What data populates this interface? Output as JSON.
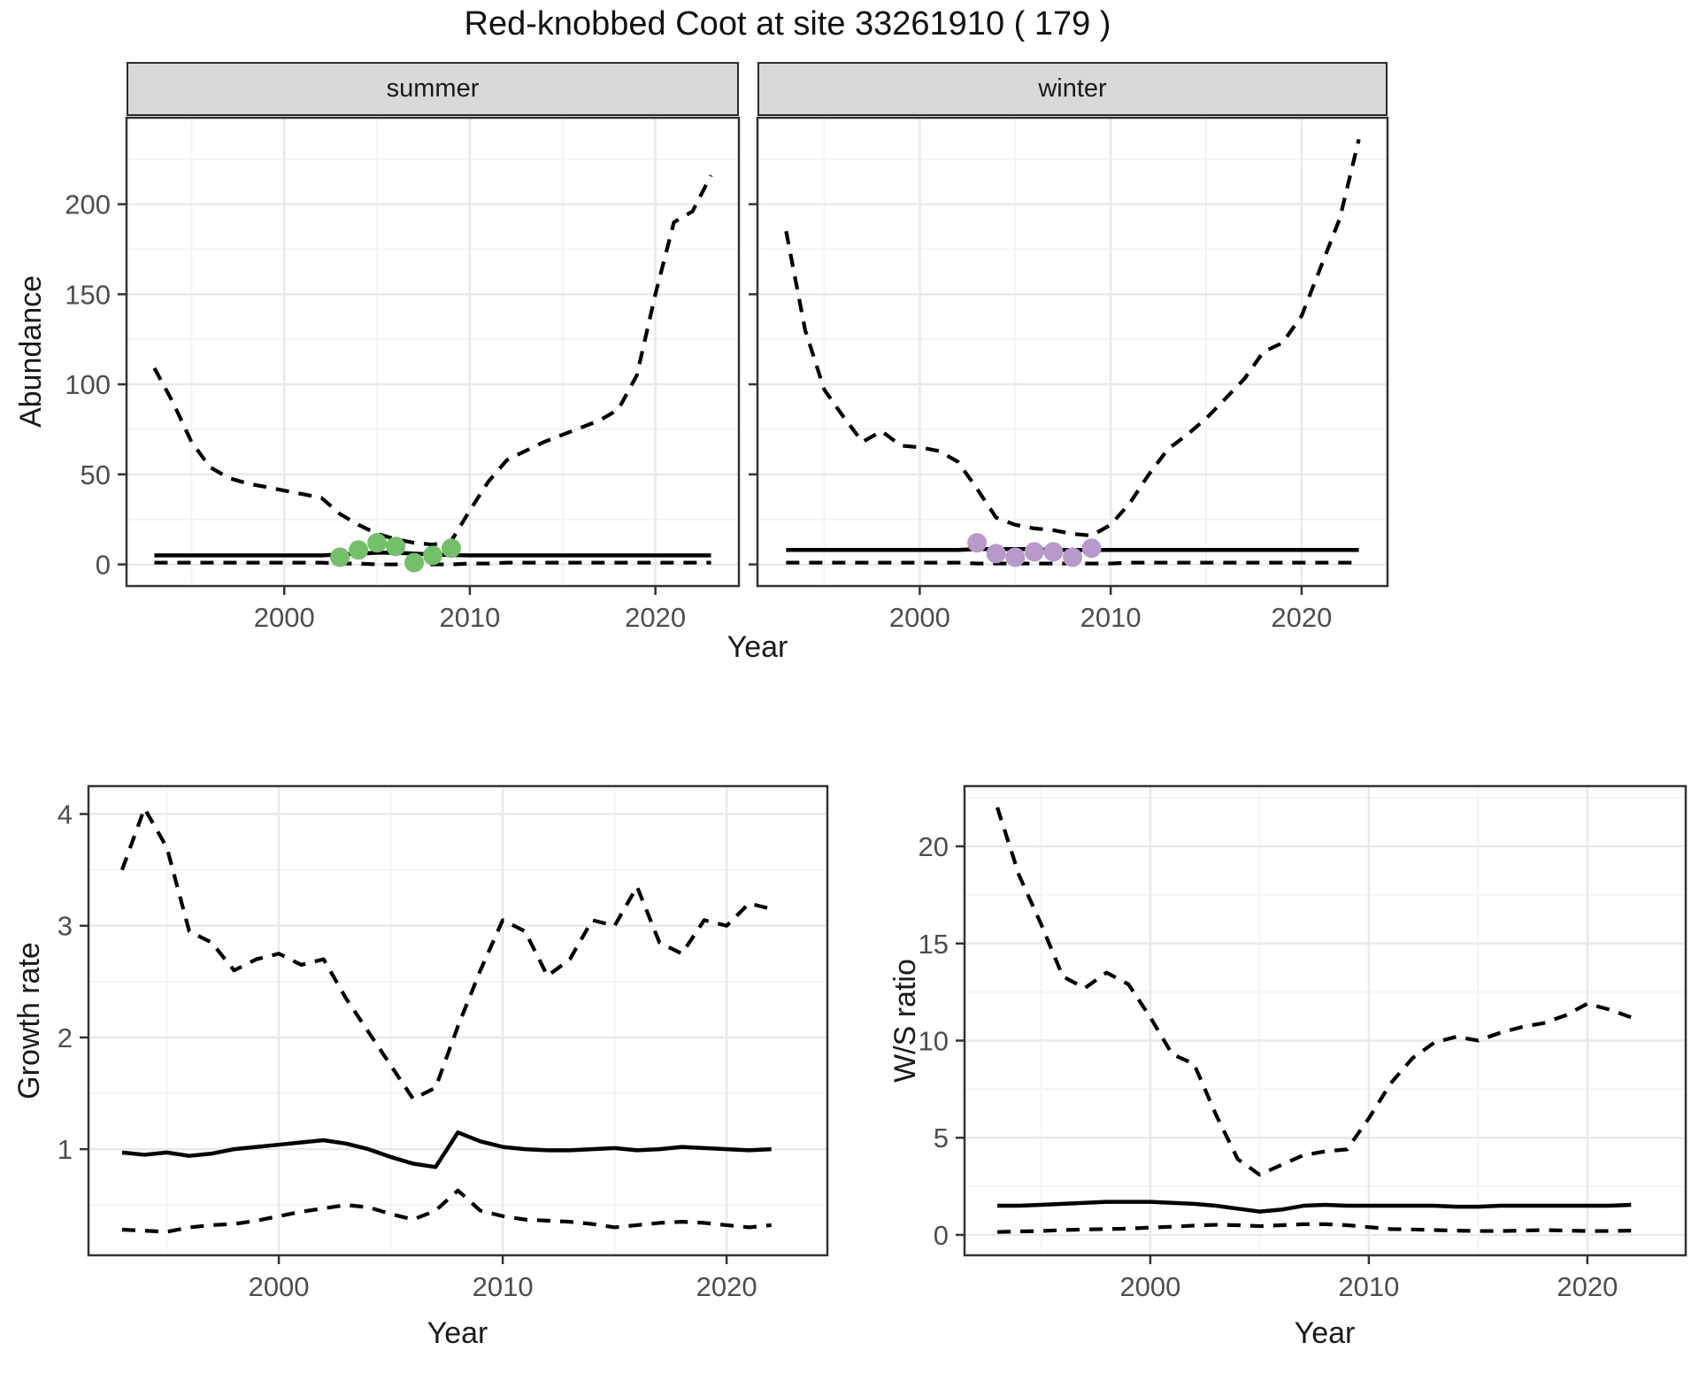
{
  "title": "Red-knobbed Coot at site 33261910 ( 179 )",
  "colors": {
    "summer_point": "#74bf69",
    "winter_point": "#b79ac9",
    "line": "#000000",
    "strip_bg": "#d9d9d9",
    "grid_major": "#e9e9e9",
    "grid_minor": "#f4f4f4",
    "axis_text": "#4d4d4d",
    "panel_border": "#333333",
    "background": "#ffffff"
  },
  "chart_data": [
    {
      "id": "abundance_summer",
      "type": "line",
      "facet_label": "summer",
      "ylabel": "Abundance",
      "xlabel": "Year",
      "x_ticks": [
        2000,
        2010,
        2020
      ],
      "y_ticks": [
        0,
        50,
        100,
        150,
        200
      ],
      "xlim": [
        1991.5,
        2024.5
      ],
      "ylim": [
        -12,
        248
      ],
      "grid": true,
      "legend": "none",
      "x": [
        1993,
        1994,
        1995,
        1996,
        1997,
        1998,
        1999,
        2000,
        2001,
        2002,
        2003,
        2004,
        2005,
        2006,
        2007,
        2008,
        2009,
        2010,
        2011,
        2012,
        2013,
        2014,
        2015,
        2016,
        2017,
        2018,
        2019,
        2020,
        2021,
        2022,
        2023
      ],
      "series": [
        {
          "name": "upper_95ci",
          "style": "dashed",
          "values": [
            109,
            90,
            68,
            54,
            48,
            45,
            43,
            41,
            39,
            37,
            28,
            22,
            17,
            14,
            12,
            11,
            13,
            30,
            46,
            58,
            63,
            68,
            72,
            76,
            80,
            86,
            105,
            150,
            190,
            196,
            216
          ]
        },
        {
          "name": "median",
          "style": "solid",
          "values": [
            5,
            5,
            5,
            5,
            5,
            5,
            5,
            5,
            5,
            5,
            5.5,
            6,
            6.5,
            6.5,
            6,
            5.5,
            5.2,
            5,
            5,
            5,
            5,
            5,
            5,
            5,
            5,
            5,
            5,
            5,
            5,
            5,
            5
          ]
        },
        {
          "name": "lower_95ci",
          "style": "dashed",
          "values": [
            1,
            1,
            1,
            1,
            1,
            1,
            1,
            1,
            1,
            1,
            0.5,
            0.5,
            0,
            0,
            0,
            0,
            0,
            0.5,
            0.5,
            1,
            1,
            1,
            1,
            1,
            1,
            1,
            1,
            1,
            1,
            1,
            1
          ]
        }
      ],
      "points": {
        "name": "observed_counts_summer",
        "color_key": "summer_point",
        "x": [
          2003,
          2004,
          2005,
          2006,
          2007,
          2008,
          2009
        ],
        "y": [
          4,
          8,
          12,
          10,
          1,
          5,
          9
        ]
      }
    },
    {
      "id": "abundance_winter",
      "type": "line",
      "facet_label": "winter",
      "ylabel": "Abundance",
      "xlabel": "Year",
      "x_ticks": [
        2000,
        2010,
        2020
      ],
      "y_ticks": [
        0,
        50,
        100,
        150,
        200
      ],
      "xlim": [
        1991.5,
        2024.5
      ],
      "ylim": [
        -12,
        248
      ],
      "grid": true,
      "legend": "none",
      "x": [
        1993,
        1994,
        1995,
        1996,
        1997,
        1998,
        1999,
        2000,
        2001,
        2002,
        2003,
        2004,
        2005,
        2006,
        2007,
        2008,
        2009,
        2010,
        2011,
        2012,
        2013,
        2014,
        2015,
        2016,
        2017,
        2018,
        2019,
        2020,
        2021,
        2022,
        2023
      ],
      "series": [
        {
          "name": "upper_95ci",
          "style": "dashed",
          "values": [
            185,
            130,
            97,
            82,
            68,
            74,
            66,
            65,
            63,
            57,
            42,
            26,
            22,
            20,
            19,
            17,
            16,
            22,
            34,
            50,
            64,
            72,
            81,
            92,
            103,
            118,
            123,
            138,
            165,
            192,
            236
          ]
        },
        {
          "name": "median",
          "style": "solid",
          "values": [
            8,
            8,
            8,
            8,
            8,
            8,
            8,
            8,
            8,
            8,
            8.5,
            8.5,
            8.5,
            8.5,
            8,
            8,
            8,
            8,
            8,
            8,
            8,
            8,
            8,
            8,
            8,
            8,
            8,
            8,
            8,
            8,
            8
          ]
        },
        {
          "name": "lower_95ci",
          "style": "dashed",
          "values": [
            1,
            1,
            1,
            1,
            1,
            1,
            1,
            1,
            1,
            1,
            0.5,
            0.5,
            0.5,
            0.5,
            0.5,
            0.5,
            0.5,
            0.5,
            1,
            1,
            1,
            1,
            1,
            1,
            1,
            1,
            1,
            1,
            1,
            1,
            1
          ]
        }
      ],
      "points": {
        "name": "observed_counts_winter",
        "color_key": "winter_point",
        "x": [
          2003,
          2004,
          2005,
          2006,
          2007,
          2008,
          2009
        ],
        "y": [
          12,
          6,
          4,
          7,
          7,
          4,
          9
        ]
      }
    },
    {
      "id": "growth_rate",
      "type": "line",
      "facet_label": "",
      "ylabel": "Growth rate",
      "xlabel": "Year",
      "x_ticks": [
        2000,
        2010,
        2020
      ],
      "y_ticks": [
        1,
        2,
        3,
        4
      ],
      "xlim": [
        1991.5,
        2024.5
      ],
      "ylim": [
        0.05,
        4.25
      ],
      "grid": true,
      "legend": "none",
      "x": [
        1993,
        1994,
        1995,
        1996,
        1997,
        1998,
        1999,
        2000,
        2001,
        2002,
        2003,
        2004,
        2005,
        2006,
        2007,
        2008,
        2009,
        2010,
        2011,
        2012,
        2013,
        2014,
        2015,
        2016,
        2017,
        2018,
        2019,
        2020,
        2021,
        2022
      ],
      "series": [
        {
          "name": "upper_95ci",
          "style": "dashed",
          "values": [
            3.5,
            4.05,
            3.7,
            2.95,
            2.85,
            2.6,
            2.7,
            2.75,
            2.65,
            2.7,
            2.35,
            2.05,
            1.75,
            1.45,
            1.55,
            2.1,
            2.6,
            3.05,
            2.95,
            2.55,
            2.7,
            3.05,
            3.0,
            3.35,
            2.85,
            2.75,
            3.05,
            3.0,
            3.2,
            3.15
          ]
        },
        {
          "name": "median",
          "style": "solid",
          "values": [
            0.97,
            0.95,
            0.97,
            0.94,
            0.96,
            1.0,
            1.02,
            1.04,
            1.06,
            1.08,
            1.05,
            1.0,
            0.93,
            0.87,
            0.84,
            1.15,
            1.07,
            1.02,
            1.0,
            0.99,
            0.99,
            1.0,
            1.01,
            0.99,
            1.0,
            1.02,
            1.01,
            1.0,
            0.99,
            1.0
          ]
        },
        {
          "name": "lower_95ci",
          "style": "dashed",
          "values": [
            0.28,
            0.27,
            0.26,
            0.3,
            0.32,
            0.33,
            0.36,
            0.4,
            0.44,
            0.47,
            0.5,
            0.48,
            0.42,
            0.37,
            0.45,
            0.63,
            0.45,
            0.4,
            0.37,
            0.36,
            0.35,
            0.33,
            0.3,
            0.32,
            0.34,
            0.35,
            0.34,
            0.32,
            0.3,
            0.32
          ]
        }
      ],
      "points": null
    },
    {
      "id": "ws_ratio",
      "type": "line",
      "facet_label": "",
      "ylabel": "W/S ratio",
      "xlabel": "Year",
      "x_ticks": [
        2000,
        2010,
        2020
      ],
      "y_ticks": [
        0,
        5,
        10,
        15,
        20
      ],
      "xlim": [
        1991.5,
        2024.5
      ],
      "ylim": [
        -1.05,
        23.1
      ],
      "grid": true,
      "legend": "none",
      "x": [
        1993,
        1994,
        1995,
        1996,
        1997,
        1998,
        1999,
        2000,
        2001,
        2002,
        2003,
        2004,
        2005,
        2006,
        2007,
        2008,
        2009,
        2010,
        2011,
        2012,
        2013,
        2014,
        2015,
        2016,
        2017,
        2018,
        2019,
        2020,
        2021,
        2022
      ],
      "series": [
        {
          "name": "upper_95ci",
          "style": "dashed",
          "values": [
            22,
            18.5,
            16,
            13.3,
            12.7,
            13.5,
            12.9,
            11.2,
            9.3,
            8.8,
            6.2,
            3.9,
            3.1,
            3.6,
            4.1,
            4.3,
            4.4,
            6.0,
            7.8,
            9.1,
            9.9,
            10.2,
            10.0,
            10.4,
            10.7,
            10.9,
            11.3,
            11.9,
            11.6,
            11.2
          ]
        },
        {
          "name": "median",
          "style": "solid",
          "values": [
            1.5,
            1.5,
            1.55,
            1.6,
            1.65,
            1.7,
            1.7,
            1.7,
            1.65,
            1.6,
            1.5,
            1.35,
            1.2,
            1.3,
            1.5,
            1.55,
            1.5,
            1.5,
            1.5,
            1.5,
            1.5,
            1.45,
            1.45,
            1.5,
            1.5,
            1.5,
            1.5,
            1.5,
            1.5,
            1.55
          ]
        },
        {
          "name": "lower_95ci",
          "style": "dashed",
          "values": [
            0.15,
            0.18,
            0.2,
            0.25,
            0.28,
            0.3,
            0.32,
            0.38,
            0.42,
            0.48,
            0.52,
            0.5,
            0.45,
            0.5,
            0.55,
            0.55,
            0.5,
            0.4,
            0.3,
            0.28,
            0.25,
            0.22,
            0.2,
            0.2,
            0.22,
            0.25,
            0.22,
            0.2,
            0.2,
            0.22
          ]
        }
      ],
      "points": null
    }
  ]
}
